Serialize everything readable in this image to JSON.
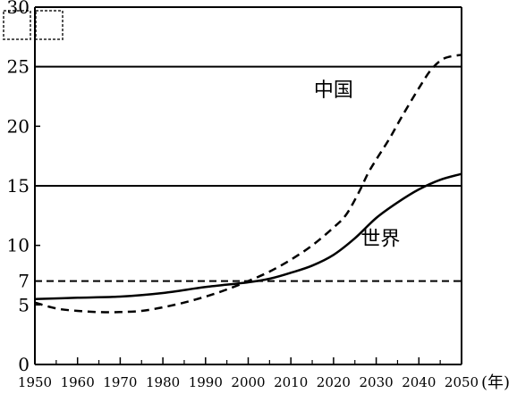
{
  "chart_data": {
    "type": "line",
    "title": "",
    "xlabel": "",
    "ylabel": "",
    "x_unit": "(年)",
    "top_left_text": "",
    "xlim": [
      1950,
      2050
    ],
    "ylim": [
      0,
      30
    ],
    "y_ticks": [
      {
        "value": 0,
        "label": "0"
      },
      {
        "value": 5,
        "label": "5"
      },
      {
        "value": 7,
        "label": "7"
      },
      {
        "value": 10,
        "label": "10"
      },
      {
        "value": 15,
        "label": "15"
      },
      {
        "value": 20,
        "label": "20"
      },
      {
        "value": 25,
        "label": "25"
      },
      {
        "value": 30,
        "label": "30"
      }
    ],
    "x_ticks": [
      {
        "value": 1950,
        "label": "1950"
      },
      {
        "value": 1960,
        "label": "1960"
      },
      {
        "value": 1970,
        "label": "1970"
      },
      {
        "value": 1980,
        "label": "1980"
      },
      {
        "value": 1990,
        "label": "1990"
      },
      {
        "value": 2000,
        "label": "2000"
      },
      {
        "value": 2010,
        "label": "2010"
      },
      {
        "value": 2020,
        "label": "2020"
      },
      {
        "value": 2030,
        "label": "2030"
      },
      {
        "value": 2040,
        "label": "2040"
      },
      {
        "value": 2050,
        "label": "2050"
      }
    ],
    "reference_lines": [
      {
        "y": 25,
        "style": "solid"
      },
      {
        "y": 15,
        "style": "solid"
      },
      {
        "y": 7,
        "style": "dashed"
      }
    ],
    "series": [
      {
        "name": "中国",
        "style": "dashed",
        "label_at": [
          2020,
          22.5
        ],
        "x": [
          1950,
          1955,
          1960,
          1965,
          1970,
          1975,
          1980,
          1985,
          1990,
          1995,
          2000,
          2005,
          2010,
          2015,
          2020,
          2023,
          2026,
          2028,
          2030,
          2033,
          2036,
          2040,
          2043,
          2046,
          2050
        ],
        "values": [
          5.2,
          4.7,
          4.5,
          4.4,
          4.4,
          4.5,
          4.8,
          5.2,
          5.7,
          6.3,
          7.0,
          7.8,
          8.8,
          10.0,
          11.5,
          12.6,
          14.5,
          16.0,
          17.2,
          18.9,
          20.8,
          23.2,
          24.8,
          25.7,
          26.0
        ]
      },
      {
        "name": "世界",
        "style": "solid",
        "label_at": [
          2031,
          10.0
        ],
        "x": [
          1950,
          1960,
          1970,
          1980,
          1990,
          2000,
          2005,
          2010,
          2015,
          2020,
          2025,
          2030,
          2035,
          2040,
          2045,
          2050
        ],
        "values": [
          5.5,
          5.6,
          5.7,
          6.0,
          6.5,
          6.9,
          7.2,
          7.7,
          8.3,
          9.2,
          10.6,
          12.3,
          13.6,
          14.7,
          15.5,
          16.0
        ]
      }
    ],
    "grid": false,
    "legend": "none"
  }
}
